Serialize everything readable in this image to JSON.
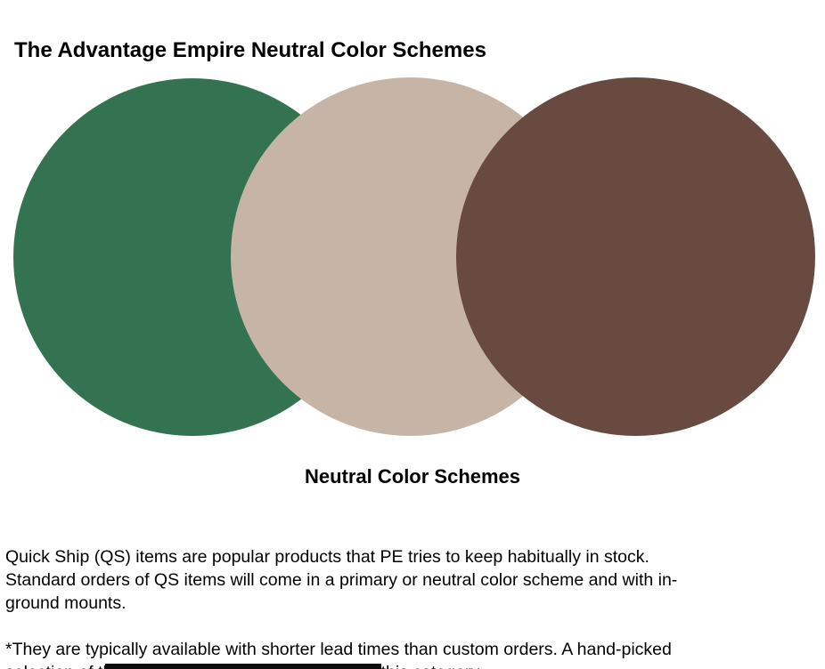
{
  "page": {
    "title": {
      "prefix": "The Advantage Empire",
      "suffix": "Neutral Color Schemes"
    }
  },
  "figure": {
    "caption": "Neutral Color Schemes",
    "circles": [
      {
        "name": "green",
        "color": "#337351"
      },
      {
        "name": "tan",
        "color": "#c6b5a6"
      },
      {
        "name": "brown",
        "color": "#694a41"
      }
    ]
  },
  "body": {
    "paragraph1": "Quick Ship (QS) items are popular products that PE tries to keep habitually in stock.\nStandard orders of QS items will come in a primary or neutral color scheme and with in-\nground mounts.",
    "paragraph2": "*They are typically available with shorter lead times than custom orders. A hand-picked\nselection of the best-selling items is reserved for this category."
  },
  "decorations": {
    "cutoff_line_color": "#0d0d0d"
  }
}
